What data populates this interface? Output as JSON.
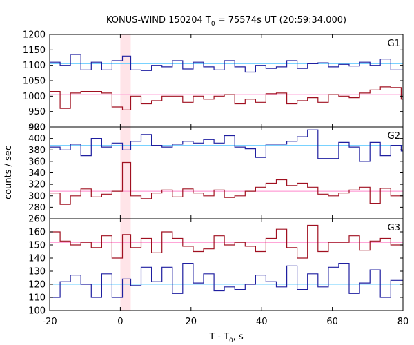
{
  "chart_data": {
    "type": "line",
    "title": {
      "prefix": "KONUS-WIND 150204 T",
      "sub": "0",
      "suffix": " = 75574s UT (20:59:34.000)"
    },
    "xlabel": {
      "prefix": "T - T",
      "sub": "0",
      "suffix": ", s"
    },
    "ylabel": "counts / sec",
    "xlim": [
      -20,
      80
    ],
    "x_ticks": [
      -20,
      0,
      20,
      40,
      60,
      80
    ],
    "highlight_interval": [
      0,
      2.944
    ],
    "colors": {
      "highlight": "#ffe4e8",
      "blue": "#1f1fa0",
      "red": "#a01020",
      "blue_fit": "#66ccff",
      "red_fit": "#ff88cc"
    },
    "bin_edges": [
      -20,
      -17.056,
      -14.112,
      -11.168,
      -8.224,
      -5.28,
      -2.336,
      0.608,
      2.944,
      5.888,
      8.832,
      11.776,
      14.72,
      17.664,
      20.608,
      23.552,
      26.496,
      29.44,
      32.384,
      35.328,
      38.272,
      41.216,
      44.16,
      47.104,
      50.048,
      52.992,
      55.936,
      58.88,
      61.824,
      64.768,
      67.712,
      70.656,
      73.6,
      76.544,
      79.488,
      80
    ],
    "panels": [
      {
        "label": "G1",
        "ylim": [
          900,
          1200
        ],
        "y_ticks": [
          900,
          950,
          1000,
          1050,
          1100,
          1150,
          1200
        ],
        "series": [
          {
            "color": "blue",
            "values": [
              1110,
              1100,
              1135,
              1085,
              1110,
              1085,
              1115,
              1130,
              1085,
              1083,
              1100,
              1095,
              1115,
              1088,
              1110,
              1095,
              1085,
              1115,
              1095,
              1078,
              1100,
              1090,
              1095,
              1115,
              1090,
              1105,
              1108,
              1095,
              1103,
              1098,
              1110,
              1100,
              1120,
              1085,
              1085
            ],
            "fit": 1105
          },
          {
            "color": "red",
            "values": [
              1015,
              960,
              1010,
              1015,
              1015,
              1010,
              965,
              955,
              1000,
              975,
              985,
              1000,
              1000,
              980,
              1000,
              990,
              1000,
              1005,
              975,
              990,
              980,
              1008,
              1010,
              975,
              985,
              995,
              980,
              1005,
              1000,
              995,
              1010,
              1020,
              1030,
              1028,
              990
            ],
            "fit": 1005
          }
        ]
      },
      {
        "label": "G2",
        "ylim": [
          260,
          420
        ],
        "y_ticks": [
          260,
          280,
          300,
          320,
          340,
          360,
          380,
          400,
          420
        ],
        "series": [
          {
            "color": "blue",
            "values": [
              385,
              380,
              390,
              370,
              400,
              385,
              392,
              380,
              395,
              407,
              388,
              385,
              390,
              395,
              392,
              398,
              392,
              405,
              385,
              382,
              367,
              390,
              390,
              395,
              403,
              415,
              365,
              365,
              393,
              385,
              360,
              393,
              370,
              388,
              378
            ],
            "fit": 388
          },
          {
            "color": "red",
            "values": [
              305,
              285,
              300,
              312,
              298,
              303,
              308,
              358,
              300,
              295,
              305,
              310,
              298,
              312,
              305,
              300,
              310,
              297,
              300,
              308,
              315,
              322,
              328,
              318,
              322,
              315,
              303,
              300,
              305,
              310,
              315,
              287,
              313,
              300,
              300
            ],
            "fit": 308
          }
        ]
      },
      {
        "label": "G3",
        "ylim": [
          100,
          170
        ],
        "y_ticks": [
          100,
          110,
          120,
          130,
          140,
          150,
          160
        ],
        "series": [
          {
            "color": "red",
            "values": [
              160,
              153,
              150,
              152,
              148,
              157,
              140,
              158,
              148,
              155,
              144,
              160,
              155,
              149,
              145,
              147,
              157,
              150,
              152,
              149,
              145,
              155,
              162,
              148,
              140,
              165,
              145,
              152,
              152,
              157,
              146,
              153,
              155,
              150,
              150
            ],
            "fit": 152
          },
          {
            "color": "blue",
            "values": [
              110,
              122,
              127,
              120,
              110,
              128,
              110,
              124,
              119,
              133,
              122,
              133,
              113,
              136,
              121,
              128,
              115,
              118,
              116,
              120,
              127,
              122,
              118,
              134,
              116,
              128,
              118,
              133,
              136,
              113,
              121,
              131,
              110,
              123,
              123
            ],
            "fit": 120
          }
        ]
      }
    ]
  }
}
